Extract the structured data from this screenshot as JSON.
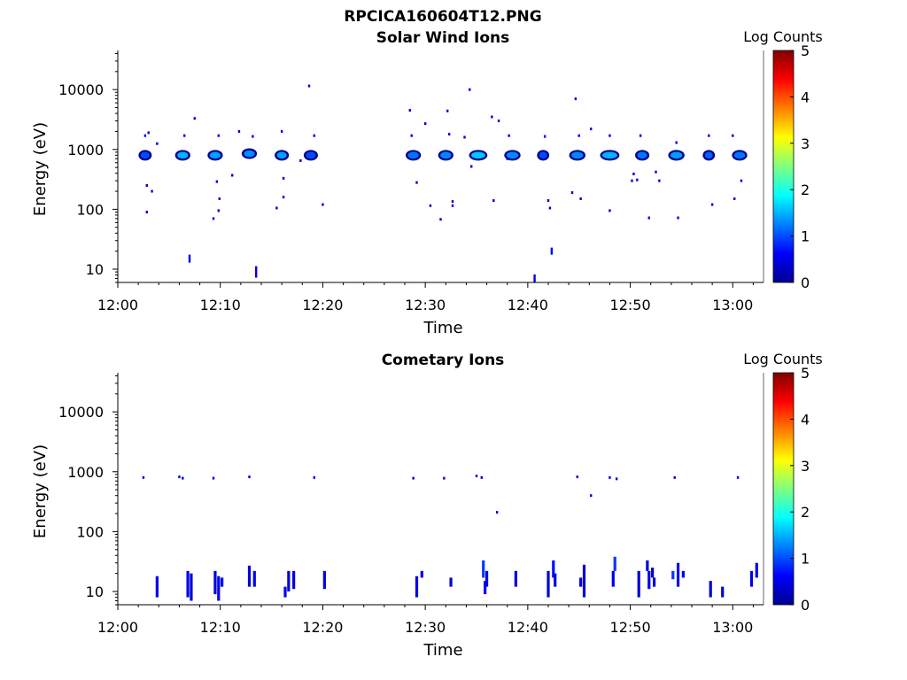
{
  "figure_title": "RPCICA160604T12.PNG",
  "colors": {
    "axis": "#000000",
    "background": "#ffffff"
  },
  "chart_data": [
    {
      "type": "heatmap",
      "title": "Solar Wind Ions",
      "xlabel": "Time",
      "ylabel": "Energy (eV)",
      "yscale": "log",
      "ylim": [
        6,
        45000
      ],
      "xlim": [
        "12:00",
        "13:03"
      ],
      "x_ticks": [
        "12:00",
        "12:10",
        "12:20",
        "12:30",
        "12:40",
        "12:50",
        "13:00"
      ],
      "y_ticks": [
        "10",
        "100",
        "1000",
        "10000"
      ],
      "colorbar": {
        "label": "Log Counts",
        "range": [
          0,
          5
        ],
        "ticks": [
          "0",
          "1",
          "2",
          "3",
          "4",
          "5"
        ],
        "colormap": "jet"
      },
      "blobs": [
        {
          "t": "12:02:40",
          "e": 800,
          "level": 1.0,
          "dt": 0.6,
          "de": 0.08
        },
        {
          "t": "12:06:20",
          "e": 800,
          "level": 1.5,
          "dt": 0.8,
          "de": 0.08
        },
        {
          "t": "12:09:30",
          "e": 800,
          "level": 1.4,
          "dt": 0.8,
          "de": 0.08
        },
        {
          "t": "12:12:50",
          "e": 850,
          "level": 1.3,
          "dt": 0.8,
          "de": 0.08
        },
        {
          "t": "12:16:00",
          "e": 800,
          "level": 1.4,
          "dt": 0.7,
          "de": 0.08
        },
        {
          "t": "12:18:50",
          "e": 800,
          "level": 1.0,
          "dt": 0.7,
          "de": 0.08
        },
        {
          "t": "12:28:50",
          "e": 800,
          "level": 1.2,
          "dt": 0.8,
          "de": 0.08
        },
        {
          "t": "12:32:00",
          "e": 800,
          "level": 1.3,
          "dt": 0.8,
          "de": 0.08
        },
        {
          "t": "12:35:10",
          "e": 800,
          "level": 1.6,
          "dt": 1.1,
          "de": 0.08
        },
        {
          "t": "12:38:30",
          "e": 800,
          "level": 1.3,
          "dt": 0.9,
          "de": 0.08
        },
        {
          "t": "12:41:30",
          "e": 800,
          "level": 1.0,
          "dt": 0.5,
          "de": 0.08
        },
        {
          "t": "12:44:50",
          "e": 800,
          "level": 1.3,
          "dt": 0.9,
          "de": 0.08
        },
        {
          "t": "12:48:00",
          "e": 800,
          "level": 1.5,
          "dt": 1.2,
          "de": 0.08
        },
        {
          "t": "12:51:10",
          "e": 800,
          "level": 1.2,
          "dt": 0.7,
          "de": 0.08
        },
        {
          "t": "12:54:30",
          "e": 800,
          "level": 1.4,
          "dt": 0.9,
          "de": 0.08
        },
        {
          "t": "12:57:40",
          "e": 800,
          "level": 1.1,
          "dt": 0.5,
          "de": 0.08
        },
        {
          "t": "13:00:40",
          "e": 800,
          "level": 1.2,
          "dt": 0.8,
          "de": 0.08
        }
      ],
      "points": [
        {
          "t": "12:02:40",
          "e": 1700,
          "level": 0.6
        },
        {
          "t": "12:03:00",
          "e": 1900,
          "level": 0.5
        },
        {
          "t": "12:03:50",
          "e": 1250,
          "level": 0.4
        },
        {
          "t": "12:02:50",
          "e": 250,
          "level": 0.4
        },
        {
          "t": "12:03:20",
          "e": 200,
          "level": 0.4
        },
        {
          "t": "12:02:50",
          "e": 90,
          "level": 0.4
        },
        {
          "t": "12:06:30",
          "e": 1700,
          "level": 0.6
        },
        {
          "t": "12:07:30",
          "e": 3300,
          "level": 0.4
        },
        {
          "t": "12:07:00",
          "e": 15,
          "level": 0.5,
          "h": 9
        },
        {
          "t": "12:09:50",
          "e": 1700,
          "level": 0.5
        },
        {
          "t": "12:09:40",
          "e": 290,
          "level": 0.4
        },
        {
          "t": "12:09:55",
          "e": 150,
          "level": 0.4
        },
        {
          "t": "12:09:50",
          "e": 95,
          "level": 0.4
        },
        {
          "t": "12:09:20",
          "e": 70,
          "level": 0.4
        },
        {
          "t": "12:11:10",
          "e": 370,
          "level": 0.4
        },
        {
          "t": "12:11:50",
          "e": 2000,
          "level": 0.4
        },
        {
          "t": "12:13:10",
          "e": 1650,
          "level": 0.5
        },
        {
          "t": "12:13:30",
          "e": 9,
          "level": 0.5,
          "h": 13
        },
        {
          "t": "12:15:30",
          "e": 105,
          "level": 0.4
        },
        {
          "t": "12:16:00",
          "e": 2000,
          "level": 0.6
        },
        {
          "t": "12:16:10",
          "e": 330,
          "level": 0.4
        },
        {
          "t": "12:16:10",
          "e": 160,
          "level": 0.4
        },
        {
          "t": "12:17:50",
          "e": 650,
          "level": 0.4
        },
        {
          "t": "12:18:40",
          "e": 11500,
          "level": 0.4
        },
        {
          "t": "12:19:10",
          "e": 1700,
          "level": 0.4
        },
        {
          "t": "12:20:00",
          "e": 120,
          "level": 0.4
        },
        {
          "t": "12:28:30",
          "e": 4500,
          "level": 0.4
        },
        {
          "t": "12:28:40",
          "e": 1700,
          "level": 0.4
        },
        {
          "t": "12:29:10",
          "e": 280,
          "level": 0.4
        },
        {
          "t": "12:30:00",
          "e": 2700,
          "level": 0.4
        },
        {
          "t": "12:30:30",
          "e": 115,
          "level": 0.4
        },
        {
          "t": "12:31:30",
          "e": 68,
          "level": 0.4
        },
        {
          "t": "12:32:10",
          "e": 4400,
          "level": 0.4
        },
        {
          "t": "12:32:20",
          "e": 1800,
          "level": 0.5
        },
        {
          "t": "12:32:40",
          "e": 135,
          "level": 0.4
        },
        {
          "t": "12:32:40",
          "e": 115,
          "level": 0.4
        },
        {
          "t": "12:33:50",
          "e": 1600,
          "level": 0.4
        },
        {
          "t": "12:34:20",
          "e": 10000,
          "level": 0.4
        },
        {
          "t": "12:34:30",
          "e": 520,
          "level": 0.4
        },
        {
          "t": "12:36:30",
          "e": 3500,
          "level": 0.4
        },
        {
          "t": "12:36:40",
          "e": 140,
          "level": 0.4
        },
        {
          "t": "12:37:10",
          "e": 3000,
          "level": 0.4
        },
        {
          "t": "12:38:10",
          "e": 1700,
          "level": 0.5
        },
        {
          "t": "12:38:00",
          "e": 700,
          "level": 0.4
        },
        {
          "t": "12:40:40",
          "e": 7,
          "level": 0.5,
          "h": 9
        },
        {
          "t": "12:41:40",
          "e": 1650,
          "level": 0.5
        },
        {
          "t": "12:42:00",
          "e": 140,
          "level": 0.4
        },
        {
          "t": "12:42:10",
          "e": 105,
          "level": 0.4
        },
        {
          "t": "12:42:20",
          "e": 20,
          "level": 0.5,
          "h": 8
        },
        {
          "t": "12:44:20",
          "e": 190,
          "level": 0.4
        },
        {
          "t": "12:44:40",
          "e": 7000,
          "level": 0.4
        },
        {
          "t": "12:45:00",
          "e": 1700,
          "level": 0.5
        },
        {
          "t": "12:45:10",
          "e": 150,
          "level": 0.4
        },
        {
          "t": "12:46:10",
          "e": 2200,
          "level": 0.4
        },
        {
          "t": "12:48:00",
          "e": 1700,
          "level": 0.5
        },
        {
          "t": "12:48:00",
          "e": 95,
          "level": 0.4
        },
        {
          "t": "12:50:20",
          "e": 390,
          "level": 0.4
        },
        {
          "t": "12:50:10",
          "e": 300,
          "level": 0.4
        },
        {
          "t": "12:50:40",
          "e": 310,
          "level": 0.4
        },
        {
          "t": "12:51:00",
          "e": 1700,
          "level": 0.5
        },
        {
          "t": "12:51:50",
          "e": 72,
          "level": 0.4
        },
        {
          "t": "12:52:30",
          "e": 420,
          "level": 0.4
        },
        {
          "t": "12:52:50",
          "e": 300,
          "level": 0.4
        },
        {
          "t": "12:54:30",
          "e": 1300,
          "level": 0.5
        },
        {
          "t": "12:54:40",
          "e": 72,
          "level": 0.4
        },
        {
          "t": "12:57:40",
          "e": 1700,
          "level": 0.5
        },
        {
          "t": "12:58:00",
          "e": 120,
          "level": 0.4
        },
        {
          "t": "13:00:00",
          "e": 1700,
          "level": 0.4
        },
        {
          "t": "13:00:10",
          "e": 150,
          "level": 0.4
        },
        {
          "t": "13:00:50",
          "e": 300,
          "level": 0.4
        }
      ]
    },
    {
      "type": "heatmap",
      "title": "Cometary Ions",
      "xlabel": "Time",
      "ylabel": "Energy (eV)",
      "yscale": "log",
      "ylim": [
        6,
        45000
      ],
      "xlim": [
        "12:00",
        "13:03"
      ],
      "x_ticks": [
        "12:00",
        "12:10",
        "12:20",
        "12:30",
        "12:40",
        "12:50",
        "13:00"
      ],
      "y_ticks": [
        "10",
        "100",
        "1000",
        "10000"
      ],
      "colorbar": {
        "label": "Log Counts",
        "range": [
          0,
          5
        ],
        "ticks": [
          "0",
          "1",
          "2",
          "3",
          "4",
          "5"
        ],
        "colormap": "jet"
      },
      "blobs": [],
      "points": [
        {
          "t": "12:02:30",
          "e": 800,
          "level": 0.4
        },
        {
          "t": "12:06:00",
          "e": 820,
          "level": 0.5
        },
        {
          "t": "12:06:20",
          "e": 780,
          "level": 0.4
        },
        {
          "t": "12:09:20",
          "e": 780,
          "level": 0.4
        },
        {
          "t": "12:12:50",
          "e": 820,
          "level": 0.5
        },
        {
          "t": "12:19:10",
          "e": 800,
          "level": 0.4
        },
        {
          "t": "12:28:50",
          "e": 780,
          "level": 0.4
        },
        {
          "t": "12:31:50",
          "e": 780,
          "level": 0.4
        },
        {
          "t": "12:35:00",
          "e": 850,
          "level": 0.5
        },
        {
          "t": "12:35:30",
          "e": 800,
          "level": 0.4
        },
        {
          "t": "12:37:00",
          "e": 210,
          "level": 0.4
        },
        {
          "t": "12:44:50",
          "e": 820,
          "level": 0.4
        },
        {
          "t": "12:46:10",
          "e": 400,
          "level": 0.4
        },
        {
          "t": "12:48:00",
          "e": 800,
          "level": 0.4
        },
        {
          "t": "12:48:40",
          "e": 760,
          "level": 0.4
        },
        {
          "t": "12:54:20",
          "e": 800,
          "level": 0.4
        },
        {
          "t": "13:00:30",
          "e": 800,
          "level": 0.5
        }
      ],
      "columns": [
        {
          "t": "12:03:50",
          "lo": 8,
          "hi": 18,
          "level": 0.5
        },
        {
          "t": "12:06:50",
          "lo": 8,
          "hi": 22,
          "level": 0.5
        },
        {
          "t": "12:07:10",
          "lo": 7,
          "hi": 20,
          "level": 0.4
        },
        {
          "t": "12:09:30",
          "lo": 9,
          "hi": 22,
          "level": 0.4
        },
        {
          "t": "12:09:50",
          "lo": 7,
          "hi": 18,
          "level": 0.5
        },
        {
          "t": "12:10:10",
          "lo": 12,
          "hi": 17,
          "level": 0.6
        },
        {
          "t": "12:12:50",
          "lo": 12,
          "hi": 27,
          "level": 0.4
        },
        {
          "t": "12:13:20",
          "lo": 12,
          "hi": 22,
          "level": 0.5
        },
        {
          "t": "12:16:20",
          "lo": 8,
          "hi": 12,
          "level": 0.5
        },
        {
          "t": "12:16:40",
          "lo": 10,
          "hi": 22,
          "level": 0.4
        },
        {
          "t": "12:17:10",
          "lo": 11,
          "hi": 22,
          "level": 0.4
        },
        {
          "t": "12:20:10",
          "lo": 11,
          "hi": 22,
          "level": 0.5
        },
        {
          "t": "12:29:10",
          "lo": 8,
          "hi": 18,
          "level": 0.5
        },
        {
          "t": "12:29:40",
          "lo": 17,
          "hi": 22,
          "level": 0.5
        },
        {
          "t": "12:32:30",
          "lo": 12,
          "hi": 17,
          "level": 0.4
        },
        {
          "t": "12:35:40",
          "lo": 17,
          "hi": 33,
          "level": 0.9
        },
        {
          "t": "12:35:50",
          "lo": 9,
          "hi": 15,
          "level": 0.6
        },
        {
          "t": "12:36:00",
          "lo": 12,
          "hi": 22,
          "level": 0.5
        },
        {
          "t": "12:38:50",
          "lo": 12,
          "hi": 22,
          "level": 0.4
        },
        {
          "t": "12:42:00",
          "lo": 8,
          "hi": 22,
          "level": 0.4
        },
        {
          "t": "12:42:30",
          "lo": 17,
          "hi": 33,
          "level": 0.7
        },
        {
          "t": "12:42:40",
          "lo": 12,
          "hi": 20,
          "level": 0.5
        },
        {
          "t": "12:45:10",
          "lo": 12,
          "hi": 17,
          "level": 0.5
        },
        {
          "t": "12:45:30",
          "lo": 8,
          "hi": 28,
          "level": 0.4
        },
        {
          "t": "12:48:20",
          "lo": 12,
          "hi": 22,
          "level": 0.5
        },
        {
          "t": "12:48:30",
          "lo": 22,
          "hi": 38,
          "level": 0.9
        },
        {
          "t": "12:50:50",
          "lo": 8,
          "hi": 22,
          "level": 0.4
        },
        {
          "t": "12:51:40",
          "lo": 22,
          "hi": 33,
          "level": 0.4
        },
        {
          "t": "12:51:50",
          "lo": 11,
          "hi": 22,
          "level": 0.5
        },
        {
          "t": "12:52:10",
          "lo": 17,
          "hi": 25,
          "level": 0.4
        },
        {
          "t": "12:52:20",
          "lo": 12,
          "hi": 17,
          "level": 0.4
        },
        {
          "t": "12:54:10",
          "lo": 16,
          "hi": 22,
          "level": 0.9
        },
        {
          "t": "12:54:40",
          "lo": 12,
          "hi": 30,
          "level": 0.6
        },
        {
          "t": "12:55:10",
          "lo": 17,
          "hi": 22,
          "level": 0.6
        },
        {
          "t": "12:57:50",
          "lo": 8,
          "hi": 15,
          "level": 0.4
        },
        {
          "t": "12:59:00",
          "lo": 8,
          "hi": 12,
          "level": 0.4
        },
        {
          "t": "13:01:50",
          "lo": 12,
          "hi": 22,
          "level": 0.5
        },
        {
          "t": "13:02:20",
          "lo": 17,
          "hi": 30,
          "level": 0.6
        }
      ]
    }
  ]
}
